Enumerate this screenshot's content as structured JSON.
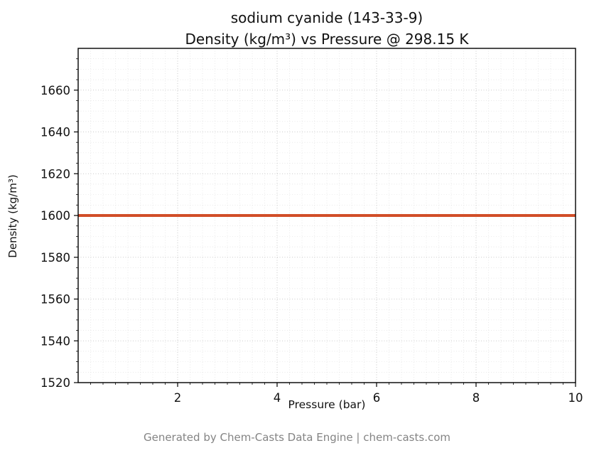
{
  "page": {
    "footer": "Generated by Chem-Casts Data Engine | chem-casts.com"
  },
  "chart_data": {
    "type": "line",
    "title_line1": "sodium cyanide (143-33-9)",
    "title_line2": "Density (kg/m³) vs Pressure @ 298.15 K",
    "xlabel": "Pressure (bar)",
    "ylabel": "Density (kg/m³)",
    "xlim": [
      0,
      10
    ],
    "ylim": [
      1520,
      1680
    ],
    "xticks": [
      2,
      4,
      6,
      8,
      10
    ],
    "yticks": [
      1520,
      1540,
      1560,
      1580,
      1600,
      1620,
      1640,
      1660
    ],
    "minor_x_step": 0.25,
    "minor_y_step": 5,
    "grid": true,
    "legend": "none",
    "series": [
      {
        "name": "density",
        "color": "#d14e28",
        "line_width": 4,
        "x": [
          0,
          10
        ],
        "y": [
          1600,
          1600
        ]
      }
    ]
  }
}
